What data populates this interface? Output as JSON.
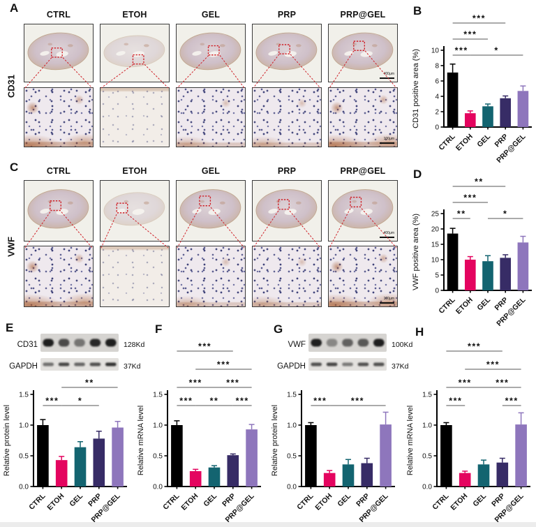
{
  "groups": [
    "CTRL",
    "ETOH",
    "GEL",
    "PRP",
    "PRP@GEL"
  ],
  "group_colors": [
    "#000000",
    "#E4045F",
    "#136470",
    "#372C66",
    "#8E76BC"
  ],
  "sig_line_color": "#777777",
  "panels": {
    "A": {
      "letter": "A",
      "row_label": "CD31",
      "columns": [
        "CTRL",
        "ETOH",
        "GEL",
        "PRP",
        "PRP@GEL"
      ],
      "scalebar_top": "400μm",
      "scalebar_bottom": "100μm"
    },
    "B": {
      "letter": "B"
    },
    "C": {
      "letter": "C",
      "row_label": "VWF",
      "columns": [
        "CTRL",
        "ETOH",
        "GEL",
        "PRP",
        "PRP@GEL"
      ],
      "scalebar_top": "400μm",
      "scalebar_bottom": "100μm"
    },
    "D": {
      "letter": "D"
    },
    "E": {
      "letter": "E",
      "blot": {
        "rows": [
          {
            "label": "CD31",
            "kd": "128Kd",
            "bands": [
              0.95,
              0.72,
              0.5,
              0.9,
              0.95
            ]
          },
          {
            "label": "GAPDH",
            "kd": "37Kd",
            "bands": [
              0.55,
              0.75,
              0.6,
              0.7,
              0.85
            ]
          }
        ]
      }
    },
    "F": {
      "letter": "F"
    },
    "G": {
      "letter": "G",
      "blot": {
        "rows": [
          {
            "label": "VWF",
            "kd": "100Kd",
            "bands": [
              0.95,
              0.4,
              0.6,
              0.65,
              0.95
            ]
          },
          {
            "label": "GAPDH",
            "kd": "37Kd",
            "bands": [
              0.7,
              0.75,
              0.5,
              0.7,
              0.7
            ]
          }
        ]
      }
    },
    "H": {
      "letter": "H"
    }
  },
  "chart_data": [
    {
      "id": "B",
      "type": "bar",
      "title": "",
      "categories": [
        "CTRL",
        "ETOH",
        "GEL",
        "PRP",
        "PRP@GEL"
      ],
      "values": [
        7.1,
        1.8,
        2.7,
        3.75,
        4.7
      ],
      "errors": [
        1.1,
        0.3,
        0.3,
        0.3,
        0.65
      ],
      "xlabel": "",
      "ylabel": "CD31 positive area (%)",
      "ylim": [
        0,
        10
      ],
      "yticks": [
        0,
        2,
        4,
        6,
        8,
        10
      ],
      "ytick_labels": [
        "0",
        "2",
        "4",
        "6",
        "8",
        "10"
      ],
      "grid": false,
      "legend": "none",
      "significance": [
        {
          "from": "CTRL",
          "to": "ETOH",
          "label": "***",
          "level": 0
        },
        {
          "from": "ETOH",
          "to": "PRP@GEL",
          "label": "*",
          "level": 0
        },
        {
          "from": "CTRL",
          "to": "GEL",
          "label": "***",
          "level": 1
        },
        {
          "from": "CTRL",
          "to": "PRP",
          "label": "***",
          "level": 2
        }
      ]
    },
    {
      "id": "D",
      "type": "bar",
      "title": "",
      "categories": [
        "CTRL",
        "ETOH",
        "GEL",
        "PRP",
        "PRP@GEL"
      ],
      "values": [
        18.5,
        10.0,
        9.5,
        10.6,
        15.6
      ],
      "errors": [
        1.7,
        1.0,
        1.8,
        1.0,
        2.0
      ],
      "xlabel": "",
      "ylabel": "VWF positive area (%)",
      "ylim": [
        0,
        25
      ],
      "yticks": [
        0,
        5,
        10,
        15,
        20,
        25
      ],
      "ytick_labels": [
        "0",
        "5",
        "10",
        "15",
        "20",
        "25"
      ],
      "grid": false,
      "legend": "none",
      "significance": [
        {
          "from": "CTRL",
          "to": "ETOH",
          "label": "**",
          "level": 0
        },
        {
          "from": "GEL",
          "to": "PRP@GEL",
          "label": "*",
          "level": 0
        },
        {
          "from": "CTRL",
          "to": "GEL",
          "label": "***",
          "level": 1
        },
        {
          "from": "CTRL",
          "to": "PRP",
          "label": "**",
          "level": 2
        }
      ]
    },
    {
      "id": "E",
      "type": "bar",
      "title": "",
      "categories": [
        "CTRL",
        "ETOH",
        "GEL",
        "PRP",
        "PRP@GEL"
      ],
      "values": [
        1.0,
        0.43,
        0.64,
        0.78,
        0.96
      ],
      "errors": [
        0.09,
        0.06,
        0.09,
        0.12,
        0.1
      ],
      "xlabel": "",
      "ylabel": "Relative protein level",
      "ylim": [
        0,
        1.5
      ],
      "yticks": [
        0,
        0.5,
        1,
        1.5
      ],
      "ytick_labels": [
        "0.0",
        "0.5",
        "1.0",
        "1.5"
      ],
      "grid": false,
      "legend": "none",
      "significance": [
        {
          "from": "CTRL",
          "to": "ETOH",
          "label": "***",
          "level": 0
        },
        {
          "from": "ETOH",
          "to": "PRP",
          "label": "*",
          "level": 0
        },
        {
          "from": "ETOH",
          "to": "PRP@GEL",
          "label": "**",
          "level": 1
        }
      ]
    },
    {
      "id": "F",
      "type": "bar",
      "title": "",
      "categories": [
        "CTRL",
        "ETOH",
        "GEL",
        "PRP",
        "PRP@GEL"
      ],
      "values": [
        1.0,
        0.25,
        0.31,
        0.51,
        0.93
      ],
      "errors": [
        0.07,
        0.03,
        0.03,
        0.02,
        0.08
      ],
      "xlabel": "",
      "ylabel": "Relative mRNA level",
      "ylim": [
        0,
        1.5
      ],
      "yticks": [
        0,
        0.5,
        1,
        1.5
      ],
      "ytick_labels": [
        "0.0",
        "0.5",
        "1.0",
        "1.5"
      ],
      "grid": false,
      "legend": "none",
      "significance": [
        {
          "from": "CTRL",
          "to": "ETOH",
          "label": "***",
          "level": 0
        },
        {
          "from": "ETOH",
          "to": "PRP",
          "label": "**",
          "level": 0
        },
        {
          "from": "PRP",
          "to": "PRP@GEL",
          "label": "***",
          "level": 0
        },
        {
          "from": "CTRL",
          "to": "GEL",
          "label": "***",
          "level": 1
        },
        {
          "from": "GEL",
          "to": "PRP@GEL",
          "label": "***",
          "level": 1
        },
        {
          "from": "ETOH",
          "to": "PRP@GEL",
          "label": "***",
          "level": 2
        },
        {
          "from": "CTRL",
          "to": "PRP",
          "label": "***",
          "level": 3
        }
      ]
    },
    {
      "id": "G",
      "type": "bar",
      "title": "",
      "categories": [
        "CTRL",
        "ETOH",
        "GEL",
        "PRP",
        "PRP@GEL"
      ],
      "values": [
        1.0,
        0.22,
        0.36,
        0.38,
        1.01
      ],
      "errors": [
        0.04,
        0.04,
        0.08,
        0.08,
        0.2
      ],
      "xlabel": "",
      "ylabel": "Relative protein level",
      "ylim": [
        0,
        1.5
      ],
      "yticks": [
        0,
        0.5,
        1,
        1.5
      ],
      "ytick_labels": [
        "0.0",
        "0.5",
        "1.0",
        "1.5"
      ],
      "grid": false,
      "legend": "none",
      "significance": [
        {
          "from": "CTRL",
          "to": "ETOH",
          "label": "***",
          "level": 0
        },
        {
          "from": "ETOH",
          "to": "PRP@GEL",
          "label": "***",
          "level": 0
        }
      ]
    },
    {
      "id": "H",
      "type": "bar",
      "title": "",
      "categories": [
        "CTRL",
        "ETOH",
        "GEL",
        "PRP",
        "PRP@GEL"
      ],
      "values": [
        1.0,
        0.22,
        0.36,
        0.39,
        1.01
      ],
      "errors": [
        0.04,
        0.03,
        0.07,
        0.07,
        0.19
      ],
      "xlabel": "",
      "ylabel": "Relative mRNA level",
      "ylim": [
        0,
        1.5
      ],
      "yticks": [
        0,
        0.5,
        1,
        1.5
      ],
      "ytick_labels": [
        "0.0",
        "0.5",
        "1.0",
        "1.5"
      ],
      "grid": false,
      "legend": "none",
      "significance": [
        {
          "from": "CTRL",
          "to": "ETOH",
          "label": "***",
          "level": 0
        },
        {
          "from": "PRP",
          "to": "PRP@GEL",
          "label": "***",
          "level": 0
        },
        {
          "from": "CTRL",
          "to": "GEL",
          "label": "***",
          "level": 1
        },
        {
          "from": "GEL",
          "to": "PRP@GEL",
          "label": "***",
          "level": 1
        },
        {
          "from": "ETOH",
          "to": "PRP@GEL",
          "label": "***",
          "level": 2
        },
        {
          "from": "CTRL",
          "to": "PRP",
          "label": "***",
          "level": 3
        }
      ]
    }
  ]
}
